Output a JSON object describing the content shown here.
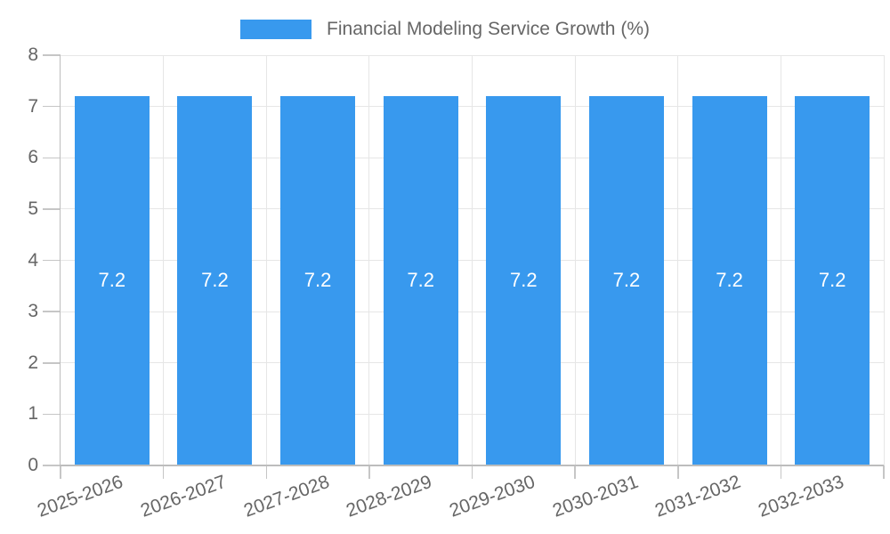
{
  "legend": {
    "label": "Financial Modeling Service Growth (%)"
  },
  "chart_data": {
    "type": "bar",
    "title": "Financial Modeling Service Growth (%)",
    "series_name": "Financial Modeling Service Growth (%)",
    "categories": [
      "2025-2026",
      "2026-2027",
      "2027-2028",
      "2028-2029",
      "2029-2030",
      "2030-2031",
      "2031-2032",
      "2032-2033"
    ],
    "values": [
      7.2,
      7.2,
      7.2,
      7.2,
      7.2,
      7.2,
      7.2,
      7.2
    ],
    "data_labels": [
      "7.2",
      "7.2",
      "7.2",
      "7.2",
      "7.2",
      "7.2",
      "7.2",
      "7.2"
    ],
    "xlabel": "",
    "ylabel": "",
    "ylim": [
      0,
      8
    ],
    "y_tick_labels": [
      "0",
      "1",
      "2",
      "3",
      "4",
      "5",
      "6",
      "7",
      "8"
    ],
    "grid": true,
    "legend_position": "top",
    "colors": {
      "bar": "#3899EE",
      "grid": "#E6E6E6",
      "axis": "#BDBDBD",
      "tick_mark": "#C6C6C6",
      "tick_label": "#666666",
      "data_label": "#FFFFFF",
      "legend_text": "#666666"
    }
  }
}
